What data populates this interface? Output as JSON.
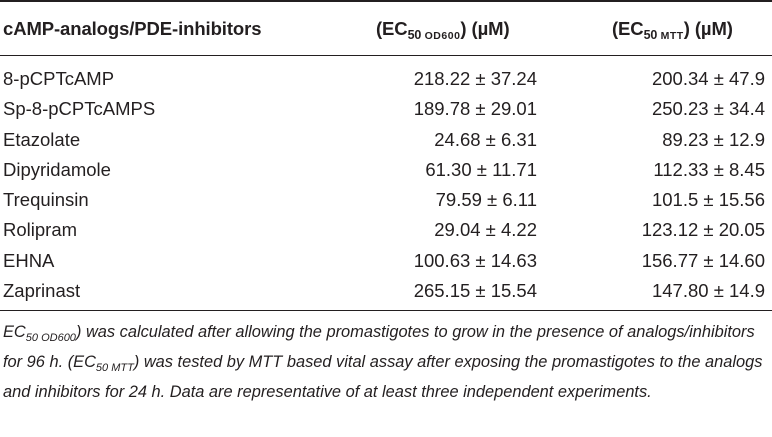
{
  "table": {
    "headers": {
      "col1": "cAMP-analogs/PDE-inhibitors",
      "col2_open": "(EC",
      "col2_sub_num": "50 ",
      "col2_sub_sc": "OD600",
      "col2_close": ") (µM)",
      "col3_open": "(EC",
      "col3_sub_num": "50 ",
      "col3_sub_sc": "MTT",
      "col3_close": ") (µM)"
    },
    "rows": [
      {
        "name": "8-pCPTcAMP",
        "ec50_od600": "218.22 ± 37.24",
        "ec50_mtt": "200.34 ± 47.9"
      },
      {
        "name": "Sp-8-pCPTcAMPS",
        "ec50_od600": "189.78 ± 29.01",
        "ec50_mtt": "250.23 ± 34.4"
      },
      {
        "name": "Etazolate",
        "ec50_od600": "24.68 ± 6.31",
        "ec50_mtt": "89.23 ± 12.9"
      },
      {
        "name": "Dipyridamole",
        "ec50_od600": "61.30 ± 11.71",
        "ec50_mtt": "112.33 ± 8.45"
      },
      {
        "name": "Trequinsin",
        "ec50_od600": "79.59 ± 6.11",
        "ec50_mtt": "101.5 ± 15.56"
      },
      {
        "name": "Rolipram",
        "ec50_od600": "29.04 ± 4.22",
        "ec50_mtt": "123.12 ± 20.05"
      },
      {
        "name": "EHNA",
        "ec50_od600": "100.63 ± 14.63",
        "ec50_mtt": "156.77 ± 14.60"
      },
      {
        "name": "Zaprinast",
        "ec50_od600": "265.15 ± 15.54",
        "ec50_mtt": "147.80 ± 14.9"
      }
    ]
  },
  "footnote": {
    "p1": "EC",
    "p1_sub": "50 OD600",
    "p2": ") was calculated after allowing the promastigotes to grow in the presence of analogs/inhibitors for 96 h. (EC",
    "p2_sub": "50 MTT",
    "p3": ") was tested by MTT based vital assay after exposing the promastigotes to the analogs and inhibitors for 24 h. Data are representative of at least three independent experiments."
  }
}
